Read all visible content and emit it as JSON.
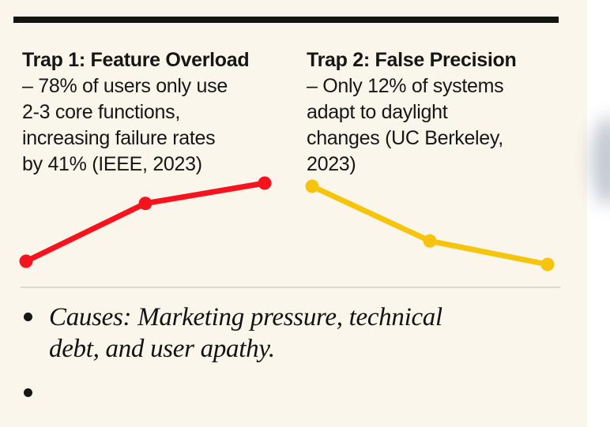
{
  "colors": {
    "background": "#FAF6EB",
    "edge_strip": "#FFFFFF",
    "text": "#161616",
    "top_rule": "#141414",
    "divider": "#DCD9D1",
    "trap1_accent": "#F7131D",
    "trap2_accent": "#F6C40D"
  },
  "traps": [
    {
      "title": "Trap 1: Feature Overload",
      "body_lines": [
        "– 78% of users only use",
        "2-3 core functions,",
        "increasing failure rates",
        "by 41% (IEEE, 2023)"
      ]
    },
    {
      "title": "Trap 2: False Precision",
      "body_lines": [
        "– Only 12% of systems",
        "adapt to daylight",
        "changes (UC Berkeley,",
        "2023)"
      ]
    }
  ],
  "bullets": {
    "items": [
      {
        "lines": [
          "Causes: Marketing pressure, technical",
          "debt, and user apathy."
        ]
      },
      {
        "lines": []
      }
    ]
  },
  "chart_data": [
    {
      "type": "line",
      "name": "trap1-trend",
      "title": "Trap 1 failure-rate trend (rising)",
      "x": [
        0,
        1,
        2
      ],
      "values": [
        0,
        0.74,
        1
      ],
      "color": "#F7131D",
      "axes_shown": false,
      "gridlines": false,
      "legend": "none",
      "xlabel": "",
      "ylabel": "",
      "ylim": [
        0,
        1
      ]
    },
    {
      "type": "line",
      "name": "trap2-trend",
      "title": "Trap 2 adaptation trend (falling)",
      "x": [
        0,
        1,
        2
      ],
      "values": [
        1,
        0.3,
        0
      ],
      "color": "#F6C40D",
      "axes_shown": false,
      "gridlines": false,
      "legend": "none",
      "xlabel": "",
      "ylabel": "",
      "ylim": [
        0,
        1
      ]
    }
  ]
}
